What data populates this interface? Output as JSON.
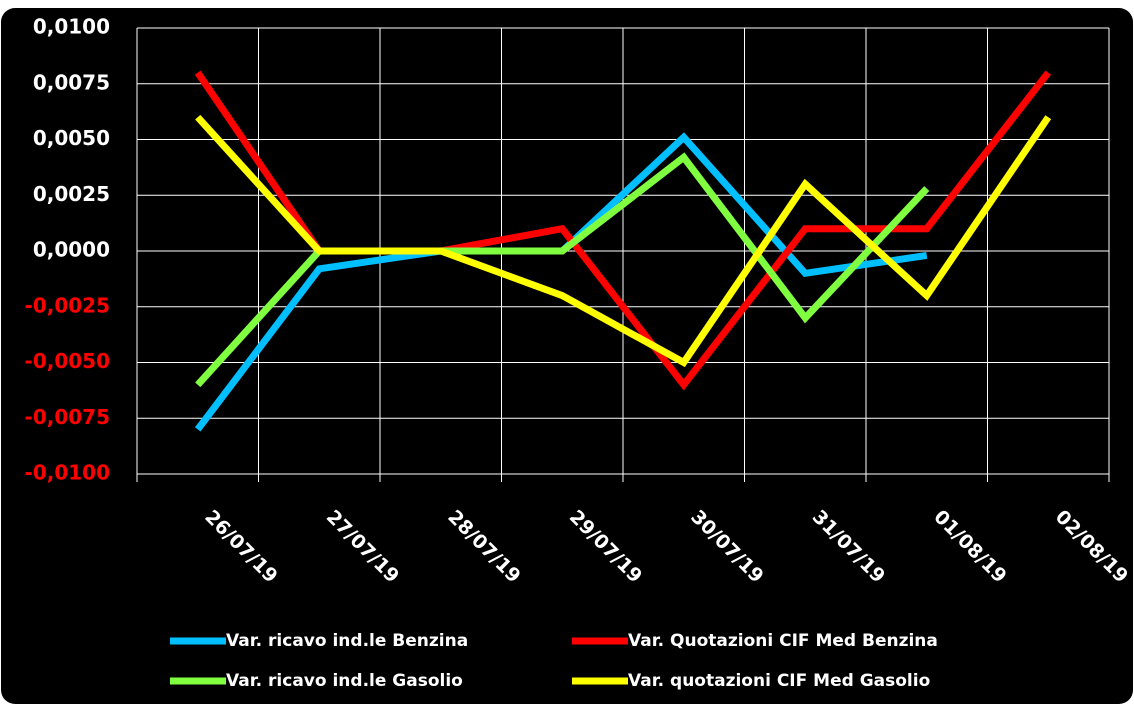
{
  "chart_data": {
    "type": "line",
    "categories": [
      "26/07/19",
      "27/07/19",
      "28/07/19",
      "29/07/19",
      "30/07/19",
      "31/07/19",
      "01/08/19",
      "02/08/19"
    ],
    "series": [
      {
        "name": "Var. ricavo ind.le Benzina",
        "color": "#00bfff",
        "values": [
          -0.008,
          -0.0008,
          0,
          0,
          0.0051,
          -0.001,
          -0.0002,
          null
        ]
      },
      {
        "name": "Var. Quotazioni CIF Med Benzina",
        "color": "#ff0000",
        "values": [
          0.008,
          0,
          0,
          0.001,
          -0.006,
          0.001,
          0.001,
          0.008
        ]
      },
      {
        "name": "Var. ricavo ind.le Gasolio",
        "color": "#80ff40",
        "values": [
          -0.006,
          0,
          0,
          0,
          0.0042,
          -0.003,
          0.0028,
          null
        ]
      },
      {
        "name": "Var. quotazioni CIF Med Gasolio",
        "color": "#ffff00",
        "values": [
          0.006,
          0,
          0,
          -0.002,
          -0.005,
          0.003,
          -0.002,
          0.006
        ]
      }
    ],
    "ylim": [
      -0.01,
      0.01
    ],
    "yticks": [
      {
        "value": -0.01,
        "label": "-0,0100"
      },
      {
        "value": -0.0075,
        "label": "-0,0075"
      },
      {
        "value": -0.005,
        "label": "-0,0050"
      },
      {
        "value": -0.0025,
        "label": "-0,0025"
      },
      {
        "value": 0,
        "label": "0,0000"
      },
      {
        "value": 0.0025,
        "label": "0,0025"
      },
      {
        "value": 0.005,
        "label": "0,0050"
      },
      {
        "value": 0.0075,
        "label": "0,0075"
      },
      {
        "value": 0.01,
        "label": "0,0100"
      }
    ],
    "grid": true
  }
}
